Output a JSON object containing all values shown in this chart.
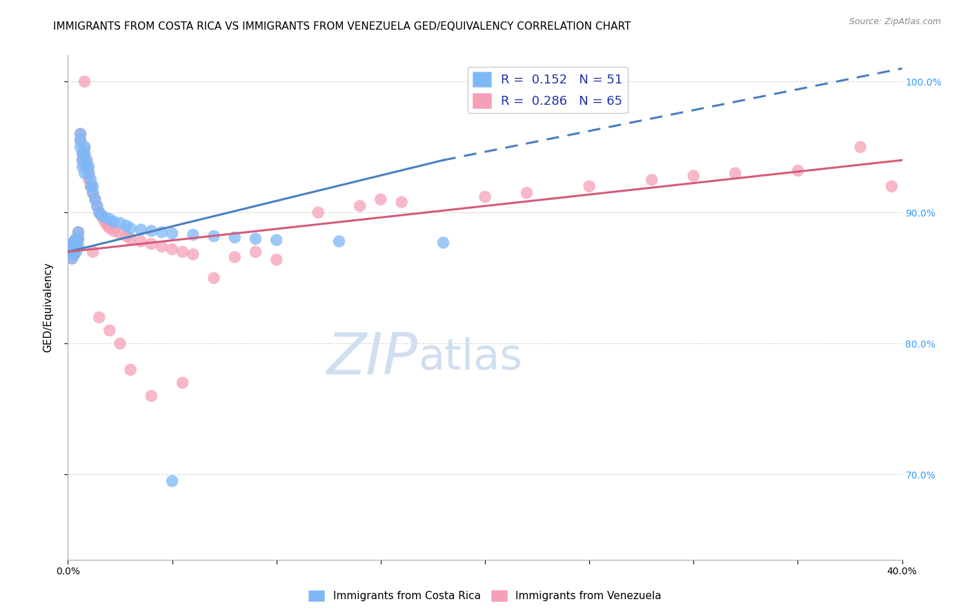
{
  "title": "IMMIGRANTS FROM COSTA RICA VS IMMIGRANTS FROM VENEZUELA GED/EQUIVALENCY CORRELATION CHART",
  "source": "Source: ZipAtlas.com",
  "ylabel": "GED/Equivalency",
  "xlim": [
    0.0,
    0.4
  ],
  "ylim": [
    0.635,
    1.02
  ],
  "ytick_labels_right": [
    "100.0%",
    "90.0%",
    "80.0%",
    "70.0%"
  ],
  "ytick_vals_right": [
    1.0,
    0.9,
    0.8,
    0.7
  ],
  "legend1_label": "R =  0.152   N = 51",
  "legend2_label": "R =  0.286   N = 65",
  "costa_rica_color": "#7db8f7",
  "venezuela_color": "#f5a0b5",
  "costa_rica_line_color": "#4a7fc1",
  "venezuela_line_color": "#d45c7a",
  "background_color": "#ffffff",
  "grid_color": "#d8d8d8",
  "title_fontsize": 11,
  "axis_label_fontsize": 11,
  "tick_fontsize": 10,
  "legend_fontsize": 13,
  "watermark_color": "#d0dff0",
  "watermark_fontsize": 60,
  "costa_rica_x": [
    0.001,
    0.002,
    0.002,
    0.003,
    0.003,
    0.003,
    0.004,
    0.004,
    0.004,
    0.005,
    0.005,
    0.005,
    0.006,
    0.006,
    0.006,
    0.007,
    0.007,
    0.007,
    0.008,
    0.008,
    0.008,
    0.009,
    0.009,
    0.01,
    0.01,
    0.011,
    0.011,
    0.012,
    0.012,
    0.013,
    0.014,
    0.015,
    0.016,
    0.018,
    0.02,
    0.022,
    0.025,
    0.028,
    0.03,
    0.035,
    0.04,
    0.045,
    0.05,
    0.06,
    0.07,
    0.08,
    0.09,
    0.1,
    0.13,
    0.18,
    0.05
  ],
  "costa_rica_y": [
    0.875,
    0.87,
    0.865,
    0.878,
    0.872,
    0.868,
    0.88,
    0.875,
    0.87,
    0.885,
    0.88,
    0.875,
    0.96,
    0.955,
    0.95,
    0.945,
    0.94,
    0.935,
    0.95,
    0.945,
    0.93,
    0.94,
    0.935,
    0.935,
    0.93,
    0.925,
    0.92,
    0.92,
    0.915,
    0.91,
    0.905,
    0.9,
    0.898,
    0.896,
    0.895,
    0.893,
    0.892,
    0.89,
    0.888,
    0.887,
    0.886,
    0.885,
    0.884,
    0.883,
    0.882,
    0.881,
    0.88,
    0.879,
    0.878,
    0.877,
    0.695
  ],
  "venezuela_x": [
    0.001,
    0.002,
    0.002,
    0.003,
    0.003,
    0.003,
    0.004,
    0.004,
    0.005,
    0.005,
    0.006,
    0.006,
    0.007,
    0.007,
    0.008,
    0.008,
    0.009,
    0.009,
    0.01,
    0.01,
    0.011,
    0.012,
    0.013,
    0.014,
    0.015,
    0.016,
    0.017,
    0.018,
    0.019,
    0.02,
    0.022,
    0.025,
    0.028,
    0.03,
    0.035,
    0.04,
    0.045,
    0.05,
    0.055,
    0.06,
    0.08,
    0.1,
    0.12,
    0.14,
    0.15,
    0.16,
    0.2,
    0.22,
    0.25,
    0.28,
    0.3,
    0.32,
    0.35,
    0.38,
    0.395,
    0.008,
    0.012,
    0.015,
    0.02,
    0.025,
    0.03,
    0.04,
    0.055,
    0.07,
    0.09
  ],
  "venezuela_y": [
    0.875,
    0.87,
    0.865,
    0.878,
    0.872,
    0.868,
    0.88,
    0.875,
    0.885,
    0.88,
    0.96,
    0.955,
    0.945,
    0.94,
    0.95,
    0.945,
    0.94,
    0.935,
    0.93,
    0.925,
    0.92,
    0.915,
    0.91,
    0.905,
    0.9,
    0.898,
    0.895,
    0.892,
    0.89,
    0.888,
    0.886,
    0.884,
    0.882,
    0.88,
    0.878,
    0.876,
    0.874,
    0.872,
    0.87,
    0.868,
    0.866,
    0.864,
    0.9,
    0.905,
    0.91,
    0.908,
    0.912,
    0.915,
    0.92,
    0.925,
    0.928,
    0.93,
    0.932,
    0.95,
    0.92,
    1.0,
    0.87,
    0.82,
    0.81,
    0.8,
    0.78,
    0.76,
    0.77,
    0.85,
    0.87
  ],
  "cr_trend_x0": 0.0,
  "cr_trend_y0": 0.87,
  "cr_trend_x1": 0.18,
  "cr_trend_y1": 0.94,
  "cr_trend_xdash1": 0.18,
  "cr_trend_ydash1": 0.94,
  "cr_trend_xdash2": 0.4,
  "cr_trend_ydash2": 1.01,
  "ven_trend_x0": 0.0,
  "ven_trend_y0": 0.87,
  "ven_trend_x1": 0.4,
  "ven_trend_y1": 0.94
}
